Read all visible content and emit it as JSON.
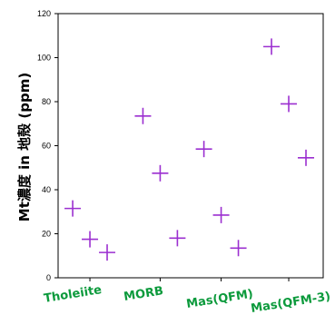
{
  "chart_data": {
    "type": "scatter",
    "title": "",
    "xlabel": "",
    "ylabel": "Mt濃度 in 地殻 (ppm)",
    "ylim": [
      0,
      120
    ],
    "yticks": [
      0,
      20,
      40,
      60,
      80,
      100,
      120
    ],
    "categories": [
      "Tholeiite",
      "MORB",
      "Mas(QFM)",
      "Mas(QFM-3)"
    ],
    "marker": "cross",
    "marker_color": "#9b2fd0",
    "category_label_color": "#0c9a3c",
    "points": [
      {
        "category": "Tholeiite",
        "y": 31.5
      },
      {
        "category": "Tholeiite",
        "y": 17.5
      },
      {
        "category": "Tholeiite",
        "y": 11.5
      },
      {
        "category": "MORB",
        "y": 73.5
      },
      {
        "category": "MORB",
        "y": 47.5
      },
      {
        "category": "MORB",
        "y": 18.0
      },
      {
        "category": "Mas(QFM)",
        "y": 58.5
      },
      {
        "category": "Mas(QFM)",
        "y": 28.5
      },
      {
        "category": "Mas(QFM)",
        "y": 13.5
      },
      {
        "category": "Mas(QFM-3)",
        "y": 105.0
      },
      {
        "category": "Mas(QFM-3)",
        "y": 79.0
      },
      {
        "category": "Mas(QFM-3)",
        "y": 54.5
      }
    ]
  }
}
